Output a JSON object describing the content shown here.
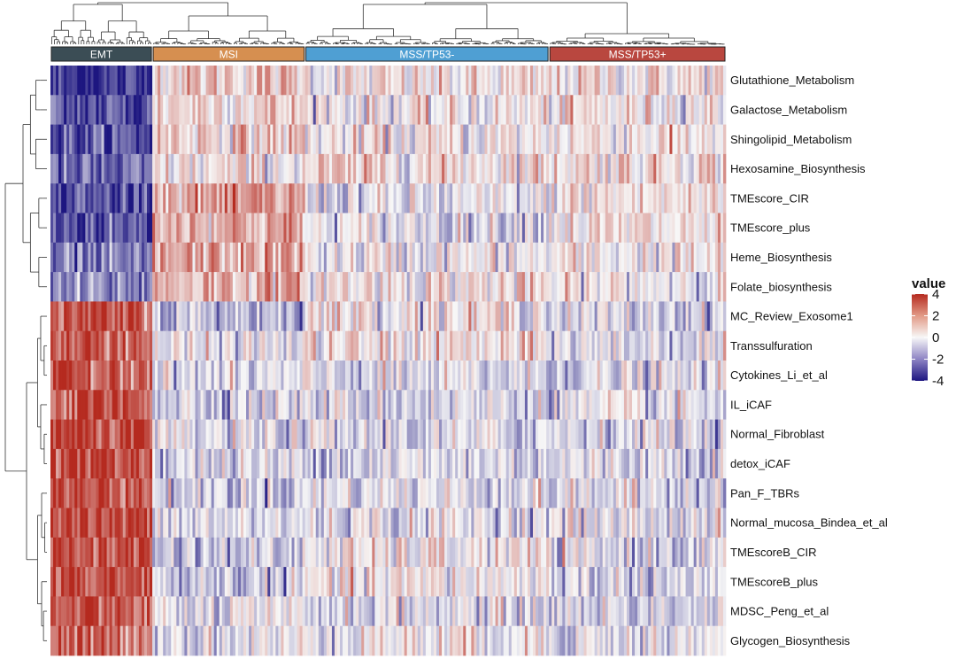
{
  "chart_data": {
    "type": "heatmap",
    "title": "",
    "xlabel": "",
    "ylabel": "",
    "rows": [
      "Glutathione_Metabolism",
      "Galactose_Metabolism",
      "Shingolipid_Metabolism",
      "Hexosamine_Biosynthesis",
      "TMEscore_CIR",
      "TMEscore_plus",
      "Heme_Biosynthesis",
      "Folate_biosynthesis",
      "MC_Review_Exosome1",
      "Transsulfuration",
      "Cytokines_Li_et_al",
      "IL_iCAF",
      "Normal_Fibroblast",
      "detox_iCAF",
      "Pan_F_TBRs",
      "Normal_mucosa_Bindea_et_al",
      "TMEscoreB_CIR",
      "TMEscoreB_plus",
      "MDSC_Peng_et_al",
      "Glycogen_Biosynthesis"
    ],
    "column_groups": [
      {
        "name": "EMT",
        "color": "#3b4d55",
        "n_samples": 38
      },
      {
        "name": "MSI",
        "color": "#d68f50",
        "n_samples": 57
      },
      {
        "name": "MSS/TP53-",
        "color": "#4f9fd3",
        "n_samples": 91
      },
      {
        "name": "MSS/TP53+",
        "color": "#b9473f",
        "n_samples": 66
      }
    ],
    "approx_group_means": [
      [
        -3.5,
        1.0,
        0.2,
        0.4
      ],
      [
        -3.0,
        0.8,
        0.1,
        0.3
      ],
      [
        -3.0,
        0.9,
        0.1,
        0.4
      ],
      [
        -2.8,
        0.2,
        0.6,
        0.7
      ],
      [
        -3.0,
        1.6,
        -0.5,
        0.4
      ],
      [
        -2.8,
        1.6,
        -0.3,
        0.3
      ],
      [
        -2.5,
        1.5,
        -0.1,
        0.1
      ],
      [
        -2.0,
        1.4,
        0.4,
        0.1
      ],
      [
        3.0,
        -1.0,
        0.3,
        -0.6
      ],
      [
        3.0,
        -0.3,
        0.3,
        -0.4
      ],
      [
        3.2,
        -0.6,
        -0.6,
        -0.6
      ],
      [
        3.2,
        -0.5,
        -0.5,
        -0.5
      ],
      [
        3.4,
        -0.6,
        -0.6,
        -0.4
      ],
      [
        3.4,
        -0.6,
        -0.5,
        -0.4
      ],
      [
        3.2,
        -0.7,
        -0.3,
        -0.4
      ],
      [
        3.3,
        -0.5,
        -0.3,
        -0.3
      ],
      [
        3.2,
        -0.9,
        0.1,
        -0.6
      ],
      [
        3.2,
        -0.9,
        0.1,
        -0.6
      ],
      [
        3.0,
        -0.5,
        -0.4,
        -0.6
      ],
      [
        2.6,
        -0.3,
        0.2,
        -0.3
      ]
    ],
    "legend": {
      "title": "value",
      "ticks": [
        4,
        2,
        0,
        -2,
        -4
      ],
      "placement": "right",
      "colors": {
        "low": "#1d1680",
        "mid": "#f7f7f7",
        "high": "#b52a1f"
      }
    },
    "dendrograms": [
      "rows-left",
      "columns-top"
    ]
  }
}
